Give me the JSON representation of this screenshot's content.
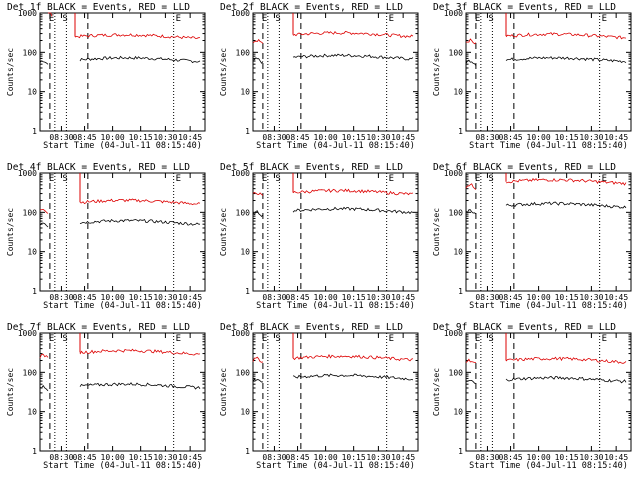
{
  "page": {
    "ylabel": "Counts/sec",
    "xlabel": "Start Time (04-Jul-11 08:15:40)",
    "xtick_labels": [
      "08:30",
      "08:45",
      "10:00",
      "10:15",
      "10:30",
      "10:45"
    ],
    "ytick_labels": [
      "1",
      "10",
      "100",
      "1000"
    ],
    "legend_text": "BLACK = Events, RED = LLD",
    "markers": [
      "E",
      "S",
      "E"
    ],
    "colors": {
      "events": "#000000",
      "lld": "#dd0000",
      "axis": "#000000"
    }
  },
  "chart_data": [
    {
      "type": "line",
      "title": "Det 1f BLACK = Events, RED = LLD",
      "x": [
        "08:30",
        "08:45",
        "10:00",
        "10:15",
        "10:30",
        "10:45"
      ],
      "ylim": [
        1,
        1000
      ],
      "yscale": "log",
      "grid": false,
      "series": [
        {
          "name": "Events",
          "segments": [
            {
              "start": "08:15",
              "end": "08:23",
              "level": 55
            },
            {
              "start": "08:55",
              "end": "10:55",
              "level": 65
            }
          ]
        },
        {
          "name": "LLD",
          "segments": [
            {
              "start": "08:23",
              "end": "08:27",
              "level": 1000
            },
            {
              "start": "08:50",
              "end": "10:55",
              "level": 250
            }
          ]
        }
      ]
    },
    {
      "type": "line",
      "title": "Det 2f BLACK = Events, RED = LLD",
      "x": [
        "08:30",
        "08:45",
        "10:00",
        "10:15",
        "10:30",
        "10:45"
      ],
      "ylim": [
        1,
        1000
      ],
      "yscale": "log",
      "grid": false,
      "series": [
        {
          "name": "Events",
          "segments": [
            {
              "start": "08:15",
              "end": "08:25",
              "level": 60
            },
            {
              "start": "08:55",
              "end": "10:55",
              "level": 75
            }
          ]
        },
        {
          "name": "LLD",
          "segments": [
            {
              "start": "08:15",
              "end": "08:25",
              "level": 180
            },
            {
              "start": "08:55",
              "end": "10:55",
              "level": 280
            }
          ]
        }
      ]
    },
    {
      "type": "line",
      "title": "Det 3f BLACK = Events, RED = LLD",
      "x": [
        "08:30",
        "08:45",
        "10:00",
        "10:15",
        "10:30",
        "10:45"
      ],
      "ylim": [
        1,
        1000
      ],
      "yscale": "log",
      "grid": false,
      "series": [
        {
          "name": "Events",
          "segments": [
            {
              "start": "08:15",
              "end": "08:25",
              "level": 55
            },
            {
              "start": "08:55",
              "end": "10:55",
              "level": 65
            }
          ]
        },
        {
          "name": "LLD",
          "segments": [
            {
              "start": "08:15",
              "end": "08:25",
              "level": 180
            },
            {
              "start": "08:55",
              "end": "10:55",
              "level": 260
            }
          ]
        }
      ]
    },
    {
      "type": "line",
      "title": "Det 4f BLACK = Events, RED = LLD",
      "x": [
        "08:30",
        "08:45",
        "10:00",
        "10:15",
        "10:30",
        "10:45"
      ],
      "ylim": [
        1,
        1000
      ],
      "yscale": "log",
      "grid": false,
      "series": [
        {
          "name": "Events",
          "segments": [
            {
              "start": "08:15",
              "end": "08:23",
              "level": 50
            },
            {
              "start": "08:55",
              "end": "10:55",
              "level": 55
            }
          ]
        },
        {
          "name": "LLD",
          "segments": [
            {
              "start": "08:15",
              "end": "08:23",
              "level": 110
            },
            {
              "start": "08:55",
              "end": "10:55",
              "level": 180
            }
          ]
        }
      ]
    },
    {
      "type": "line",
      "title": "Det 5f BLACK = Events, RED = LLD",
      "x": [
        "08:30",
        "08:45",
        "10:00",
        "10:15",
        "10:30",
        "10:45"
      ],
      "ylim": [
        1,
        1000
      ],
      "yscale": "log",
      "grid": false,
      "series": [
        {
          "name": "Events",
          "segments": [
            {
              "start": "08:15",
              "end": "08:25",
              "level": 90
            },
            {
              "start": "08:55",
              "end": "10:55",
              "level": 110
            }
          ]
        },
        {
          "name": "LLD",
          "segments": [
            {
              "start": "08:15",
              "end": "08:25",
              "level": 280
            },
            {
              "start": "08:55",
              "end": "10:55",
              "level": 320
            }
          ]
        }
      ]
    },
    {
      "type": "line",
      "title": "Det 6f BLACK = Events, RED = LLD",
      "x": [
        "08:30",
        "08:45",
        "10:00",
        "10:15",
        "10:30",
        "10:45"
      ],
      "ylim": [
        1,
        1000
      ],
      "yscale": "log",
      "grid": false,
      "series": [
        {
          "name": "Events",
          "segments": [
            {
              "start": "08:15",
              "end": "08:25",
              "level": 100
            },
            {
              "start": "08:55",
              "end": "10:55",
              "level": 150
            }
          ]
        },
        {
          "name": "LLD",
          "segments": [
            {
              "start": "08:15",
              "end": "08:25",
              "level": 450
            },
            {
              "start": "08:55",
              "end": "10:55",
              "level": 600
            }
          ]
        }
      ]
    },
    {
      "type": "line",
      "title": "Det 7f BLACK = Events, RED = LLD",
      "x": [
        "08:30",
        "08:45",
        "10:00",
        "10:15",
        "10:30",
        "10:45"
      ],
      "ylim": [
        1,
        1000
      ],
      "yscale": "log",
      "grid": false,
      "series": [
        {
          "name": "Events",
          "segments": [
            {
              "start": "08:15",
              "end": "08:23",
              "level": 40
            },
            {
              "start": "08:55",
              "end": "10:55",
              "level": 45
            }
          ]
        },
        {
          "name": "LLD",
          "segments": [
            {
              "start": "08:15",
              "end": "08:23",
              "level": 250
            },
            {
              "start": "08:55",
              "end": "10:55",
              "level": 320
            }
          ]
        }
      ]
    },
    {
      "type": "line",
      "title": "Det 8f BLACK = Events, RED = LLD",
      "x": [
        "08:30",
        "08:45",
        "10:00",
        "10:15",
        "10:30",
        "10:45"
      ],
      "ylim": [
        1,
        1000
      ],
      "yscale": "log",
      "grid": false,
      "series": [
        {
          "name": "Events",
          "segments": [
            {
              "start": "08:15",
              "end": "08:25",
              "level": 60
            },
            {
              "start": "08:55",
              "end": "10:55",
              "level": 75
            }
          ]
        },
        {
          "name": "LLD",
          "segments": [
            {
              "start": "08:15",
              "end": "08:25",
              "level": 200
            },
            {
              "start": "08:55",
              "end": "10:55",
              "level": 230
            }
          ]
        }
      ]
    },
    {
      "type": "line",
      "title": "Det 9f BLACK = Events, RED = LLD",
      "x": [
        "08:30",
        "08:45",
        "10:00",
        "10:15",
        "10:30",
        "10:45"
      ],
      "ylim": [
        1,
        1000
      ],
      "yscale": "log",
      "grid": false,
      "series": [
        {
          "name": "Events",
          "segments": [
            {
              "start": "08:15",
              "end": "08:25",
              "level": 55
            },
            {
              "start": "08:55",
              "end": "10:55",
              "level": 65
            }
          ]
        },
        {
          "name": "LLD",
          "segments": [
            {
              "start": "08:15",
              "end": "08:25",
              "level": 180
            },
            {
              "start": "08:55",
              "end": "10:55",
              "level": 200
            }
          ]
        }
      ]
    }
  ]
}
